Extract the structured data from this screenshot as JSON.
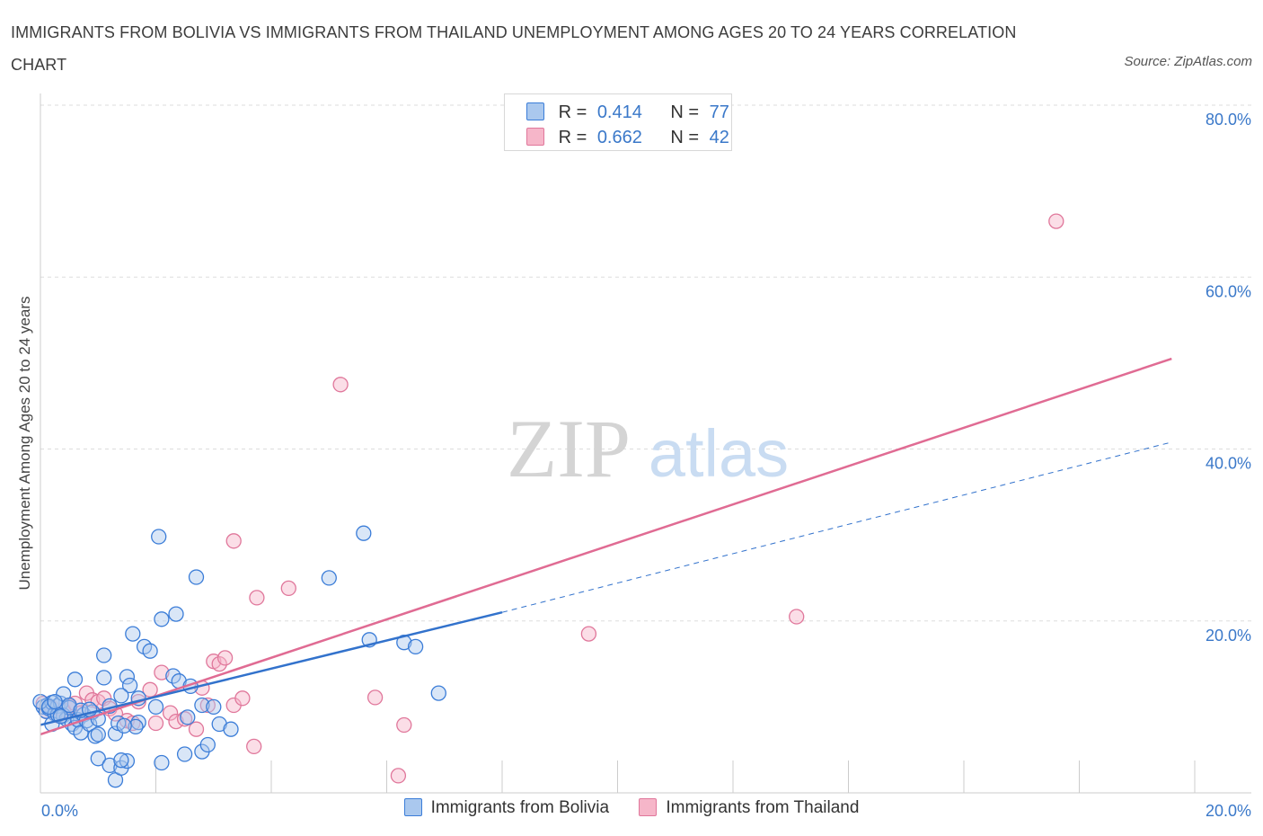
{
  "title": "IMMIGRANTS FROM BOLIVIA VS IMMIGRANTS FROM THAILAND UNEMPLOYMENT AMONG AGES 20 TO 24 YEARS CORRELATION CHART",
  "source": "Source: ZipAtlas.com",
  "watermark": {
    "zip": "ZIP",
    "atlas": "atlas"
  },
  "legend": {
    "r_label": "R =",
    "n_label": "N =",
    "bolivia": {
      "r": "0.414",
      "n": "77"
    },
    "thailand": {
      "r": "0.662",
      "n": "42"
    }
  },
  "colors": {
    "bolivia_fill": "#aac8ee",
    "bolivia_stroke": "#3b7dd8",
    "bolivia_line": "#3272cc",
    "thailand_fill": "#f6b6c9",
    "thailand_stroke": "#e0779b",
    "thailand_line": "#e06b93",
    "tick_text": "#3a78c9",
    "grid": "#dddddd"
  },
  "chart_data": {
    "type": "scatter",
    "title": "IMMIGRANTS FROM BOLIVIA VS IMMIGRANTS FROM THAILAND UNEMPLOYMENT AMONG AGES 20 TO 24 YEARS CORRELATION CHART",
    "xlabel": "",
    "ylabel": "Unemployment Among Ages 20 to 24 years",
    "xlim": [
      0,
      20
    ],
    "ylim": [
      0,
      80
    ],
    "x_tick_labels": [
      "0.0%",
      "20.0%"
    ],
    "y_ticks": [
      20,
      40,
      60,
      80
    ],
    "y_tick_labels": [
      "20.0%",
      "40.0%",
      "60.0%",
      "80.0%"
    ],
    "grid": true,
    "series": [
      {
        "name": "Immigrants from Bolivia",
        "r": 0.414,
        "n": 77,
        "trend": {
          "x0": 0,
          "y0": 7.9,
          "x1": 8.0,
          "y1": 21.0,
          "dash_to_x": 19.6,
          "dash_to_y": 40.8
        },
        "points": [
          [
            0.05,
            10.0
          ],
          [
            0.1,
            9.5
          ],
          [
            0.12,
            10.2
          ],
          [
            0.15,
            9.8
          ],
          [
            0.2,
            10.5
          ],
          [
            0.25,
            9.2
          ],
          [
            0.3,
            10.1
          ],
          [
            0.35,
            10.4
          ],
          [
            0.4,
            9.0
          ],
          [
            0.45,
            8.6
          ],
          [
            0.5,
            9.9
          ],
          [
            0.55,
            8.0
          ],
          [
            0.6,
            7.6
          ],
          [
            0.65,
            8.5
          ],
          [
            0.7,
            7.0
          ],
          [
            0.75,
            9.1
          ],
          [
            0.8,
            8.4
          ],
          [
            0.85,
            8.0
          ],
          [
            0.9,
            9.4
          ],
          [
            0.95,
            6.6
          ],
          [
            1.0,
            8.6
          ],
          [
            0.4,
            11.5
          ],
          [
            0.6,
            13.2
          ],
          [
            1.1,
            13.4
          ],
          [
            1.1,
            16.0
          ],
          [
            1.5,
            13.5
          ],
          [
            1.55,
            12.5
          ],
          [
            1.4,
            11.3
          ],
          [
            1.7,
            11.0
          ],
          [
            1.8,
            17.0
          ],
          [
            1.6,
            18.5
          ],
          [
            1.9,
            16.5
          ],
          [
            2.0,
            10.0
          ],
          [
            2.1,
            20.2
          ],
          [
            2.35,
            20.8
          ],
          [
            2.3,
            13.6
          ],
          [
            2.4,
            13.0
          ],
          [
            2.6,
            12.4
          ],
          [
            2.8,
            10.2
          ],
          [
            3.0,
            10.0
          ],
          [
            2.05,
            29.8
          ],
          [
            2.7,
            25.1
          ],
          [
            3.1,
            8.0
          ],
          [
            3.3,
            7.4
          ],
          [
            1.0,
            4.0
          ],
          [
            1.2,
            3.2
          ],
          [
            1.3,
            1.5
          ],
          [
            1.4,
            2.9
          ],
          [
            1.5,
            3.7
          ],
          [
            1.0,
            6.8
          ],
          [
            1.3,
            6.9
          ],
          [
            1.4,
            3.8
          ],
          [
            2.1,
            3.5
          ],
          [
            2.5,
            4.5
          ],
          [
            2.8,
            4.8
          ],
          [
            2.9,
            5.6
          ],
          [
            2.55,
            8.8
          ],
          [
            1.7,
            8.2
          ],
          [
            5.0,
            25.0
          ],
          [
            5.6,
            30.2
          ],
          [
            5.7,
            17.8
          ],
          [
            6.3,
            17.5
          ],
          [
            6.5,
            17.0
          ],
          [
            6.9,
            11.6
          ],
          [
            1.65,
            7.7
          ],
          [
            0.2,
            8.0
          ],
          [
            0.3,
            9.1
          ],
          [
            0.5,
            10.2
          ],
          [
            0.7,
            9.6
          ],
          [
            0.85,
            9.7
          ],
          [
            1.35,
            8.1
          ],
          [
            1.45,
            7.8
          ],
          [
            1.2,
            10.1
          ],
          [
            0.0,
            10.6
          ],
          [
            0.15,
            10.0
          ],
          [
            0.25,
            10.6
          ],
          [
            0.35,
            8.9
          ]
        ]
      },
      {
        "name": "Immigrants from Thailand",
        "r": 0.662,
        "n": 42,
        "trend": {
          "x0": 0,
          "y0": 6.8,
          "x1": 19.6,
          "y1": 50.5
        },
        "points": [
          [
            0.05,
            10.4
          ],
          [
            0.1,
            9.5
          ],
          [
            0.2,
            9.9
          ],
          [
            0.3,
            9.0
          ],
          [
            0.4,
            9.6
          ],
          [
            0.5,
            10.1
          ],
          [
            0.6,
            10.4
          ],
          [
            0.7,
            9.3
          ],
          [
            0.8,
            11.6
          ],
          [
            0.9,
            10.8
          ],
          [
            1.0,
            10.6
          ],
          [
            1.1,
            11.0
          ],
          [
            1.2,
            9.8
          ],
          [
            1.3,
            9.2
          ],
          [
            1.5,
            8.4
          ],
          [
            1.6,
            8.1
          ],
          [
            1.7,
            10.6
          ],
          [
            1.9,
            12.0
          ],
          [
            2.0,
            8.1
          ],
          [
            2.1,
            14.0
          ],
          [
            2.25,
            9.3
          ],
          [
            2.35,
            8.3
          ],
          [
            2.5,
            8.6
          ],
          [
            2.7,
            7.4
          ],
          [
            2.8,
            12.2
          ],
          [
            2.9,
            10.2
          ],
          [
            3.0,
            15.3
          ],
          [
            3.1,
            15.0
          ],
          [
            3.2,
            15.7
          ],
          [
            3.35,
            10.2
          ],
          [
            3.5,
            11.0
          ],
          [
            3.7,
            5.4
          ],
          [
            3.35,
            29.3
          ],
          [
            3.75,
            22.7
          ],
          [
            4.3,
            23.8
          ],
          [
            5.2,
            47.5
          ],
          [
            5.8,
            11.1
          ],
          [
            6.2,
            2.0
          ],
          [
            6.3,
            7.9
          ],
          [
            9.5,
            18.5
          ],
          [
            13.1,
            20.5
          ],
          [
            17.6,
            66.5
          ]
        ]
      }
    ]
  }
}
